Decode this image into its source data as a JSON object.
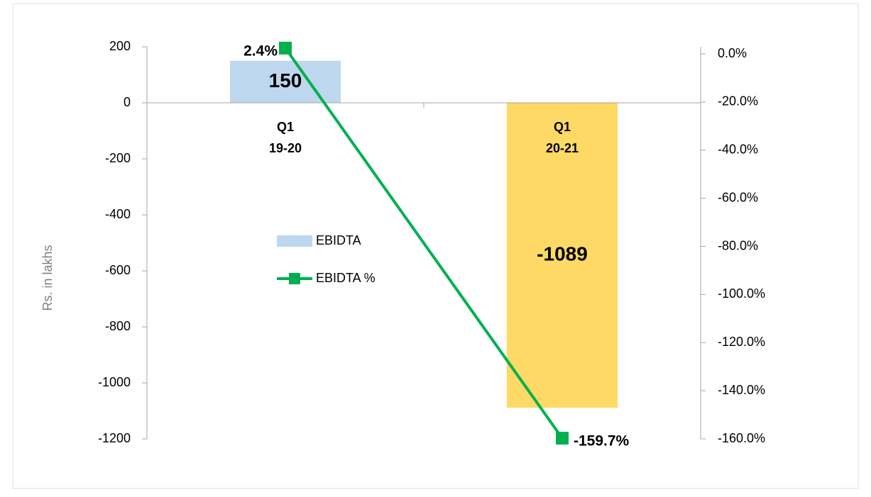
{
  "chart_data": {
    "type": "bar_line",
    "y_label": "Rs. in lakhs",
    "categories": [
      [
        "Q1",
        "19-20"
      ],
      [
        "Q1",
        "20-21"
      ]
    ],
    "series": [
      {
        "name": "EBIDTA",
        "type": "bar",
        "colors": [
          "#bdd7ee",
          "#ffd966"
        ],
        "values": [
          150,
          -1089
        ]
      },
      {
        "name": "EBIDTA %",
        "type": "line",
        "axis": "y2",
        "color": "#00b050",
        "values": [
          2.4,
          -159.7
        ],
        "value_labels": [
          "2.4%",
          "-159.7%"
        ]
      }
    ],
    "ylim": [
      -1200,
      200
    ],
    "yticks": [
      200,
      0,
      -200,
      -400,
      -600,
      -800,
      -1000,
      -1200
    ],
    "y2lim": [
      -160,
      0
    ],
    "y2ticks": [
      {
        "value": 0,
        "label": "0.0%"
      },
      {
        "value": -20,
        "label": "-20.0%"
      },
      {
        "value": -40,
        "label": "-40.0%"
      },
      {
        "value": -60,
        "label": "-60.0%"
      },
      {
        "value": -80,
        "label": "-80.0%"
      },
      {
        "value": -100,
        "label": "-100.0%"
      },
      {
        "value": -120,
        "label": "-120.0%"
      },
      {
        "value": -140,
        "label": "-140.0%"
      },
      {
        "value": -160,
        "label": "-160.0%"
      }
    ],
    "legend": "center-left"
  }
}
